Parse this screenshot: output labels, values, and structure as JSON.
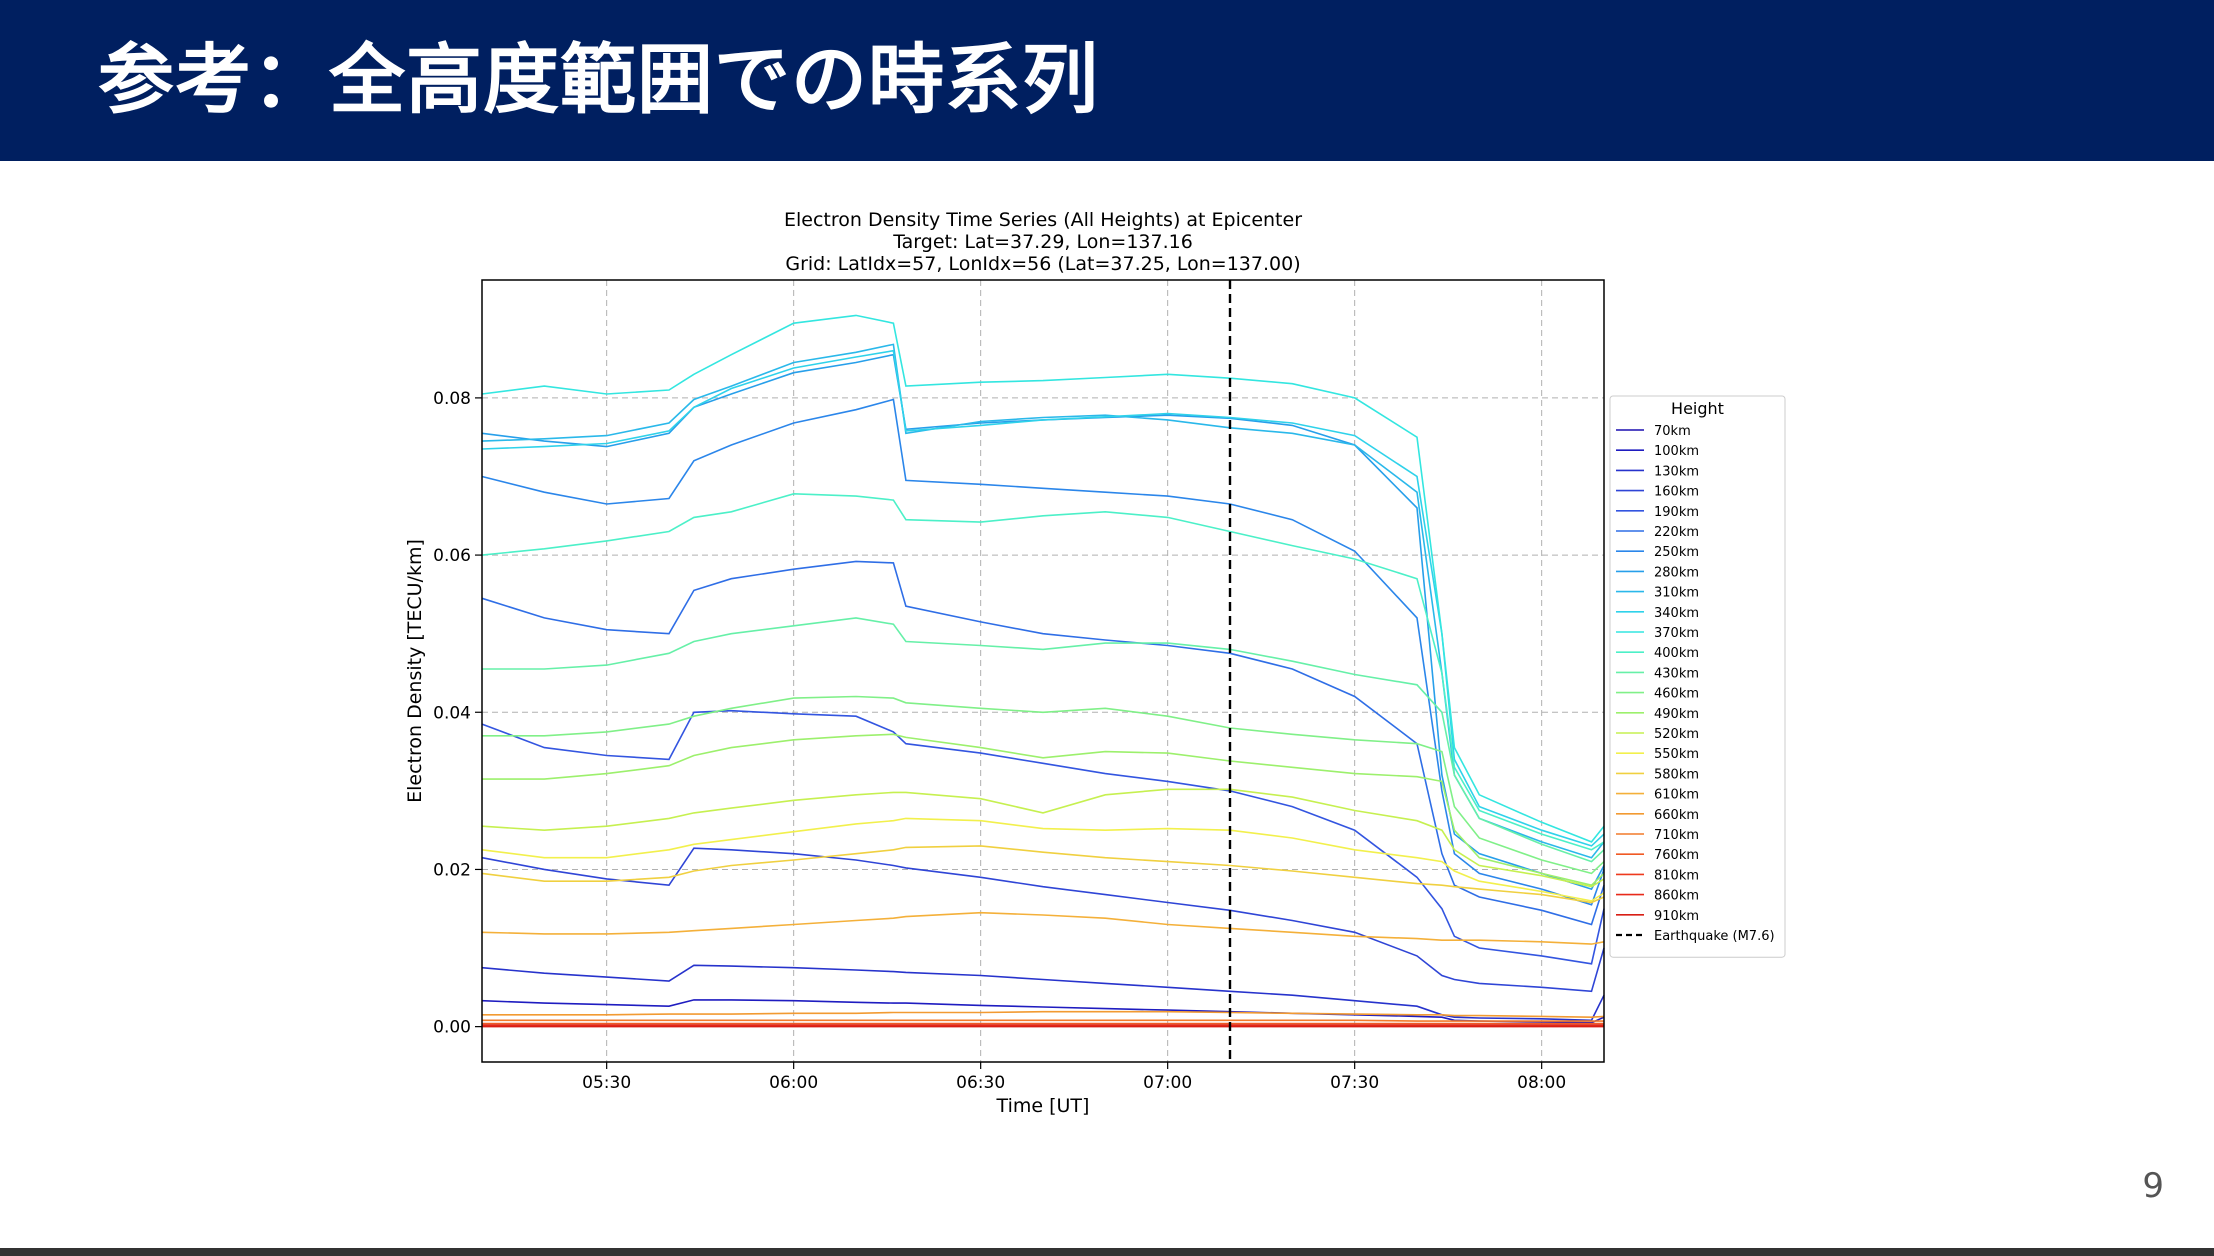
{
  "slide": {
    "title": "参考：全高度範囲での時系列",
    "page_number": "9",
    "colors": {
      "header_bg": "#001f60",
      "title_text": "#ffffff",
      "footer_bar": "#333333"
    }
  },
  "chart_data": {
    "type": "line",
    "title_lines": [
      "Electron Density Time Series (All Heights) at Epicenter",
      "Target: Lat=37.29, Lon=137.16",
      "Grid: LatIdx=57, LonIdx=56 (Lat=37.25, Lon=137.00)"
    ],
    "xlabel": "Time [UT]",
    "ylabel": "Electron Density [TECU/km]",
    "xlim": [
      "05:10",
      "08:10"
    ],
    "ylim": [
      -0.0045,
      0.095
    ],
    "x_ticks": [
      "05:30",
      "06:00",
      "06:30",
      "07:00",
      "07:30",
      "08:00"
    ],
    "y_ticks": [
      "0.00",
      "0.02",
      "0.04",
      "0.06",
      "0.08"
    ],
    "grid": true,
    "legend_title": "Height",
    "legend_position": "right-outside",
    "x": [
      "05:10",
      "05:20",
      "05:30",
      "05:40",
      "05:44",
      "05:50",
      "06:00",
      "06:10",
      "06:16",
      "06:18",
      "06:30",
      "06:40",
      "06:50",
      "07:00",
      "07:10",
      "07:20",
      "07:30",
      "07:40",
      "07:44",
      "07:46",
      "07:50",
      "08:00",
      "08:08",
      "08:10"
    ],
    "series": [
      {
        "name": "70km",
        "color": "#1a0fb0",
        "values": [
          0.0002,
          0.0002,
          0.0002,
          0.0002,
          0.0002,
          0.0002,
          0.0002,
          0.0002,
          0.0002,
          0.0002,
          0.0002,
          0.0002,
          0.0002,
          0.0002,
          0.0002,
          0.0002,
          0.0002,
          0.0002,
          0.0002,
          0.0002,
          0.0002,
          0.0002,
          0.0002,
          0.0002
        ]
      },
      {
        "name": "100km",
        "color": "#1f1cc0",
        "values": [
          0.0033,
          0.003,
          0.0028,
          0.0026,
          0.0034,
          0.0034,
          0.0033,
          0.0031,
          0.003,
          0.003,
          0.0027,
          0.0025,
          0.0023,
          0.0021,
          0.0019,
          0.0017,
          0.0015,
          0.0013,
          0.0012,
          0.0008,
          0.0007,
          0.0006,
          0.0005,
          0.0012
        ]
      },
      {
        "name": "130km",
        "color": "#2733cc",
        "values": [
          0.0075,
          0.0068,
          0.0063,
          0.0058,
          0.0078,
          0.0077,
          0.0075,
          0.0072,
          0.007,
          0.0069,
          0.0065,
          0.006,
          0.0055,
          0.005,
          0.0045,
          0.004,
          0.0033,
          0.0026,
          0.0015,
          0.0012,
          0.0011,
          0.001,
          0.0008,
          0.004
        ]
      },
      {
        "name": "160km",
        "color": "#2f45d6",
        "values": [
          0.0215,
          0.02,
          0.0188,
          0.018,
          0.0227,
          0.0225,
          0.022,
          0.0212,
          0.0205,
          0.0202,
          0.019,
          0.0178,
          0.0168,
          0.0158,
          0.0148,
          0.0135,
          0.012,
          0.009,
          0.0065,
          0.006,
          0.0055,
          0.005,
          0.0045,
          0.01
        ]
      },
      {
        "name": "190km",
        "color": "#3355e0",
        "values": [
          0.0385,
          0.0355,
          0.0345,
          0.034,
          0.04,
          0.0402,
          0.0398,
          0.0395,
          0.0375,
          0.036,
          0.0348,
          0.0335,
          0.0322,
          0.0312,
          0.03,
          0.028,
          0.025,
          0.019,
          0.015,
          0.0115,
          0.01,
          0.009,
          0.008,
          0.015
        ]
      },
      {
        "name": "220km",
        "color": "#2f6ee6",
        "values": [
          0.0545,
          0.052,
          0.0505,
          0.05,
          0.0555,
          0.057,
          0.0582,
          0.0592,
          0.059,
          0.0535,
          0.0515,
          0.05,
          0.0492,
          0.0485,
          0.0475,
          0.0455,
          0.042,
          0.036,
          0.022,
          0.018,
          0.0165,
          0.0148,
          0.013,
          0.018
        ]
      },
      {
        "name": "250km",
        "color": "#2b86ea",
        "values": [
          0.07,
          0.068,
          0.0665,
          0.0672,
          0.072,
          0.074,
          0.0768,
          0.0785,
          0.0798,
          0.0695,
          0.069,
          0.0685,
          0.068,
          0.0675,
          0.0665,
          0.0645,
          0.0605,
          0.052,
          0.03,
          0.022,
          0.0195,
          0.0175,
          0.0155,
          0.02
        ]
      },
      {
        "name": "280km",
        "color": "#279fea",
        "values": [
          0.0755,
          0.0745,
          0.0738,
          0.0755,
          0.0788,
          0.0805,
          0.0832,
          0.0845,
          0.0855,
          0.076,
          0.0768,
          0.0772,
          0.0775,
          0.0778,
          0.0774,
          0.0765,
          0.074,
          0.066,
          0.032,
          0.0245,
          0.022,
          0.0195,
          0.0175,
          0.0205
        ]
      },
      {
        "name": "310km",
        "color": "#2ab8ea",
        "values": [
          0.0745,
          0.0748,
          0.0752,
          0.0768,
          0.0798,
          0.0815,
          0.0845,
          0.0858,
          0.0868,
          0.0755,
          0.077,
          0.0775,
          0.0778,
          0.0772,
          0.0762,
          0.0755,
          0.074,
          0.068,
          0.045,
          0.032,
          0.0265,
          0.0235,
          0.0215,
          0.0235
        ]
      },
      {
        "name": "340km",
        "color": "#2fd2ea",
        "values": [
          0.0735,
          0.0738,
          0.0742,
          0.0758,
          0.0788,
          0.0812,
          0.0838,
          0.0852,
          0.086,
          0.0758,
          0.0765,
          0.0772,
          0.0776,
          0.078,
          0.0775,
          0.0768,
          0.0752,
          0.07,
          0.05,
          0.034,
          0.028,
          0.025,
          0.023,
          0.0245
        ]
      },
      {
        "name": "370km",
        "color": "#33e6e0",
        "values": [
          0.0805,
          0.0815,
          0.0805,
          0.081,
          0.083,
          0.0855,
          0.0895,
          0.0905,
          0.0895,
          0.0815,
          0.082,
          0.0822,
          0.0826,
          0.083,
          0.0825,
          0.0818,
          0.08,
          0.075,
          0.05,
          0.0355,
          0.0295,
          0.026,
          0.0235,
          0.0255
        ]
      },
      {
        "name": "400km",
        "color": "#4cf0c8",
        "values": [
          0.06,
          0.0608,
          0.0618,
          0.063,
          0.0648,
          0.0655,
          0.0678,
          0.0675,
          0.067,
          0.0645,
          0.0642,
          0.065,
          0.0655,
          0.0648,
          0.063,
          0.0612,
          0.0595,
          0.057,
          0.045,
          0.033,
          0.0275,
          0.0245,
          0.0225,
          0.0235
        ]
      },
      {
        "name": "430km",
        "color": "#66f0a8",
        "values": [
          0.0455,
          0.0455,
          0.046,
          0.0475,
          0.049,
          0.05,
          0.051,
          0.052,
          0.0512,
          0.049,
          0.0485,
          0.048,
          0.0488,
          0.0488,
          0.048,
          0.0465,
          0.0448,
          0.0435,
          0.04,
          0.032,
          0.0265,
          0.0232,
          0.021,
          0.0225
        ]
      },
      {
        "name": "460km",
        "color": "#80f088",
        "values": [
          0.037,
          0.037,
          0.0375,
          0.0385,
          0.0395,
          0.0405,
          0.0418,
          0.042,
          0.0418,
          0.0412,
          0.0405,
          0.04,
          0.0405,
          0.0395,
          0.038,
          0.0372,
          0.0365,
          0.036,
          0.035,
          0.028,
          0.024,
          0.0212,
          0.0195,
          0.021
        ]
      },
      {
        "name": "490km",
        "color": "#9cf06c",
        "values": [
          0.0315,
          0.0315,
          0.0322,
          0.0332,
          0.0345,
          0.0355,
          0.0365,
          0.037,
          0.0372,
          0.0368,
          0.0355,
          0.0342,
          0.035,
          0.0348,
          0.0338,
          0.033,
          0.0322,
          0.0318,
          0.0312,
          0.025,
          0.0215,
          0.0195,
          0.018,
          0.0195
        ]
      },
      {
        "name": "520km",
        "color": "#c6f050",
        "values": [
          0.0255,
          0.025,
          0.0255,
          0.0265,
          0.0272,
          0.0278,
          0.0288,
          0.0295,
          0.0298,
          0.0298,
          0.029,
          0.0272,
          0.0295,
          0.0302,
          0.0302,
          0.0292,
          0.0275,
          0.0262,
          0.025,
          0.0225,
          0.0205,
          0.0192,
          0.0178,
          0.0188
        ]
      },
      {
        "name": "550km",
        "color": "#f2f04c",
        "values": [
          0.0225,
          0.0215,
          0.0215,
          0.0225,
          0.0232,
          0.0238,
          0.0248,
          0.0258,
          0.0262,
          0.0265,
          0.0262,
          0.0252,
          0.025,
          0.0252,
          0.025,
          0.024,
          0.0225,
          0.0215,
          0.021,
          0.0198,
          0.0185,
          0.0172,
          0.016,
          0.017
        ]
      },
      {
        "name": "580km",
        "color": "#f0d040",
        "values": [
          0.0195,
          0.0185,
          0.0185,
          0.019,
          0.0198,
          0.0205,
          0.0212,
          0.022,
          0.0225,
          0.0228,
          0.023,
          0.0222,
          0.0215,
          0.021,
          0.0205,
          0.0198,
          0.019,
          0.0182,
          0.018,
          0.0178,
          0.0175,
          0.0168,
          0.0158,
          0.0165
        ]
      },
      {
        "name": "610km",
        "color": "#f4b03a",
        "values": [
          0.012,
          0.0118,
          0.0118,
          0.012,
          0.0122,
          0.0125,
          0.013,
          0.0135,
          0.0138,
          0.014,
          0.0145,
          0.0142,
          0.0138,
          0.013,
          0.0125,
          0.012,
          0.0115,
          0.0112,
          0.011,
          0.011,
          0.011,
          0.0108,
          0.0105,
          0.0108
        ]
      },
      {
        "name": "660km",
        "color": "#f29a32",
        "values": [
          0.0015,
          0.0015,
          0.0015,
          0.0016,
          0.0016,
          0.0016,
          0.0017,
          0.0017,
          0.0018,
          0.0018,
          0.0018,
          0.0019,
          0.0019,
          0.0019,
          0.0018,
          0.0017,
          0.0016,
          0.0015,
          0.0015,
          0.0014,
          0.0014,
          0.0013,
          0.0012,
          0.0013
        ]
      },
      {
        "name": "710km",
        "color": "#f27a2a",
        "values": [
          0.0008,
          0.0008,
          0.0008,
          0.0008,
          0.0008,
          0.0008,
          0.0008,
          0.0008,
          0.0008,
          0.0008,
          0.0008,
          0.0008,
          0.0008,
          0.0008,
          0.0008,
          0.0008,
          0.0008,
          0.0007,
          0.0007,
          0.0007,
          0.0007,
          0.0007,
          0.0007,
          0.0007
        ]
      },
      {
        "name": "760km",
        "color": "#f05a24",
        "values": [
          0.0004,
          0.0004,
          0.0004,
          0.0004,
          0.0004,
          0.0004,
          0.0004,
          0.0004,
          0.0004,
          0.0004,
          0.0004,
          0.0004,
          0.0004,
          0.0004,
          0.0004,
          0.0004,
          0.0004,
          0.0004,
          0.0004,
          0.0004,
          0.0004,
          0.0004,
          0.0004,
          0.0004
        ]
      },
      {
        "name": "810km",
        "color": "#ee3a1e",
        "values": [
          0.0002,
          0.0002,
          0.0002,
          0.0002,
          0.0002,
          0.0002,
          0.0002,
          0.0002,
          0.0002,
          0.0002,
          0.0002,
          0.0002,
          0.0002,
          0.0002,
          0.0002,
          0.0002,
          0.0002,
          0.0002,
          0.0002,
          0.0002,
          0.0002,
          0.0002,
          0.0002,
          0.0002
        ]
      },
      {
        "name": "860km",
        "color": "#e82a1a",
        "values": [
          0.0001,
          0.0001,
          0.0001,
          0.0001,
          0.0001,
          0.0001,
          0.0001,
          0.0001,
          0.0001,
          0.0001,
          0.0001,
          0.0001,
          0.0001,
          0.0001,
          0.0001,
          0.0001,
          0.0001,
          0.0001,
          0.0001,
          0.0001,
          0.0001,
          0.0001,
          0.0001,
          0.0001
        ]
      },
      {
        "name": "910km",
        "color": "#d81e14",
        "values": [
          0.0,
          0.0,
          0.0,
          0.0,
          0.0,
          0.0,
          0.0,
          0.0,
          0.0,
          0.0,
          0.0,
          0.0,
          0.0,
          0.0,
          0.0,
          0.0,
          0.0,
          0.0,
          0.0,
          0.0,
          0.0,
          0.0,
          0.0,
          0.0
        ]
      }
    ],
    "event_line": {
      "name": "Earthquake (M7.6)",
      "x": "07:10",
      "color": "#000000",
      "style": "dashed"
    }
  }
}
